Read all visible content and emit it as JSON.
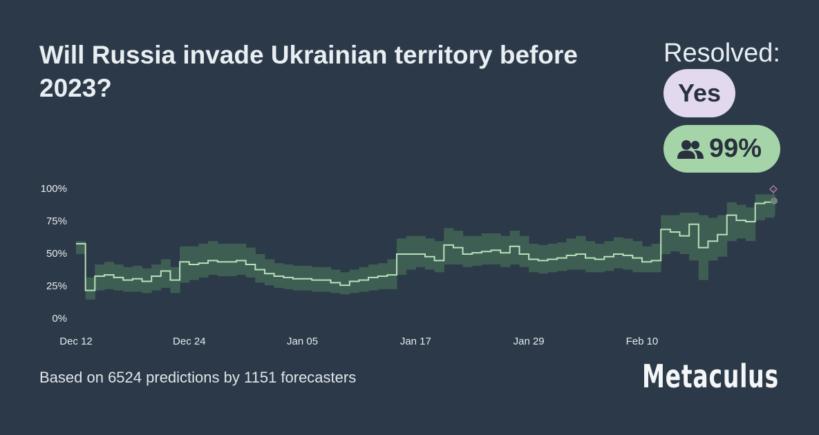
{
  "header": {
    "title": "Will Russia invade Ukrainian territory before 2023?",
    "status_label": "Resolved:",
    "resolution": "Yes",
    "community_prediction": "99%"
  },
  "chart_data": {
    "type": "step",
    "x": [
      0,
      1,
      2,
      3,
      4,
      5,
      6,
      7,
      8,
      9,
      10,
      11,
      12,
      13,
      14,
      15,
      16,
      17,
      18,
      19,
      20,
      21,
      22,
      23,
      24,
      25,
      26,
      27,
      28,
      29,
      30,
      31,
      32,
      33,
      34,
      35,
      36,
      37,
      38,
      39,
      40,
      41,
      42,
      43,
      44,
      45,
      46,
      47,
      48,
      49,
      50,
      51,
      52,
      53,
      54,
      55,
      56,
      57,
      58,
      59,
      60,
      61,
      62,
      63,
      64,
      65,
      66,
      67,
      68,
      69,
      70,
      71,
      72,
      73,
      74
    ],
    "series": [
      {
        "color": "#b8e2bb",
        "values": [
          58,
          22,
          33,
          34,
          32,
          30,
          31,
          29,
          33,
          37,
          30,
          44,
          42,
          43,
          45,
          44,
          44,
          45,
          42,
          38,
          35,
          33,
          32,
          31,
          31,
          30,
          30,
          28,
          26,
          29,
          30,
          32,
          33,
          34,
          50,
          50,
          50,
          48,
          45,
          57,
          55,
          50,
          51,
          52,
          53,
          51,
          56,
          50,
          46,
          45,
          46,
          47,
          49,
          50,
          47,
          46,
          48,
          50,
          49,
          47,
          44,
          45,
          69,
          67,
          64,
          73,
          55,
          60,
          65,
          80,
          76,
          75,
          89,
          90,
          91
        ]
      }
    ],
    "band": {
      "color": "#3e5e53",
      "lower": [
        50,
        15,
        22,
        23,
        22,
        21,
        21,
        20,
        22,
        24,
        20,
        28,
        30,
        32,
        34,
        33,
        33,
        34,
        32,
        28,
        26,
        24,
        23,
        22,
        22,
        21,
        21,
        20,
        19,
        20,
        21,
        22,
        23,
        23,
        34,
        38,
        40,
        38,
        36,
        42,
        42,
        40,
        41,
        42,
        42,
        40,
        42,
        40,
        36,
        35,
        36,
        37,
        38,
        38,
        36,
        36,
        37,
        39,
        38,
        36,
        36,
        36,
        50,
        52,
        50,
        45,
        30,
        45,
        48,
        60,
        62,
        60,
        76,
        78,
        80
      ],
      "upper": [
        60,
        32,
        42,
        44,
        42,
        40,
        41,
        39,
        42,
        46,
        40,
        56,
        56,
        58,
        60,
        58,
        58,
        58,
        55,
        50,
        46,
        43,
        42,
        41,
        41,
        40,
        40,
        38,
        36,
        38,
        40,
        42,
        43,
        46,
        62,
        64,
        64,
        62,
        60,
        70,
        68,
        64,
        64,
        66,
        66,
        64,
        68,
        64,
        58,
        57,
        58,
        59,
        62,
        64,
        60,
        58,
        60,
        63,
        62,
        60,
        56,
        58,
        80,
        80,
        82,
        82,
        80,
        78,
        80,
        90,
        88,
        86,
        96,
        96,
        96
      ]
    },
    "resolved_value": 100,
    "xlim": [
      0,
      74
    ],
    "xticks": [
      {
        "value": 0,
        "label": "Dec 12"
      },
      {
        "value": 12,
        "label": "Dec 24"
      },
      {
        "value": 24,
        "label": "Jan 05"
      },
      {
        "value": 36,
        "label": "Jan 17"
      },
      {
        "value": 48,
        "label": "Jan 29"
      },
      {
        "value": 60,
        "label": "Feb 10"
      }
    ],
    "ylim": [
      0,
      100
    ],
    "yticks": [
      {
        "value": 0,
        "label": "0%"
      },
      {
        "value": 25,
        "label": "25%"
      },
      {
        "value": 50,
        "label": "50%"
      },
      {
        "value": 75,
        "label": "75%"
      },
      {
        "value": 100,
        "label": "100%"
      }
    ]
  },
  "footer": {
    "text": "Based on 6524 predictions by 1151 forecasters",
    "brand": "Metaculus"
  }
}
